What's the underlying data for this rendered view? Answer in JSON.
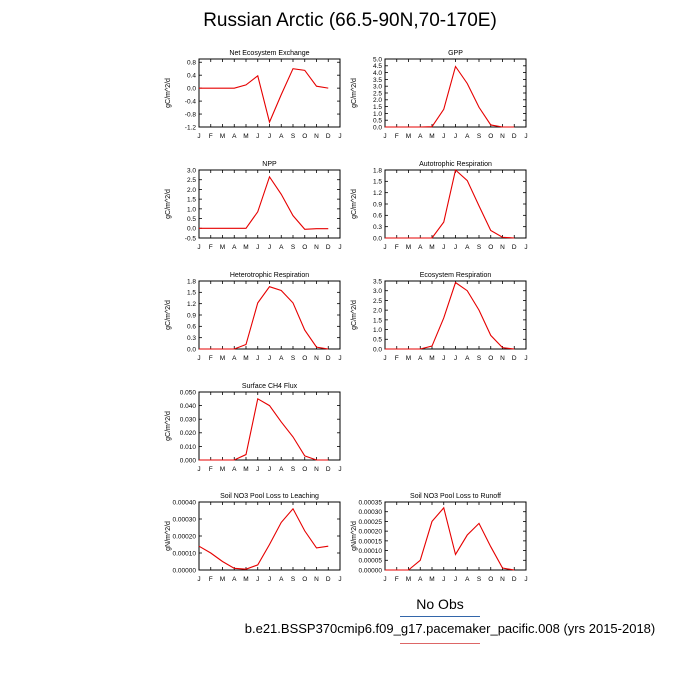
{
  "title": "Russian Arctic (66.5-90N,70-170E)",
  "legend_label": "No Obs",
  "case_label": "b.e21.BSSP370cmip6.f09_g17.pacemaker_pacific.008 (yrs 2015-2018)",
  "colors": {
    "line": "#e60000",
    "axis": "#000000",
    "legend_rule_obs": "#3366aa",
    "legend_rule_case": "#dd6666"
  },
  "months": [
    "J",
    "F",
    "M",
    "A",
    "M",
    "J",
    "J",
    "A",
    "S",
    "O",
    "N",
    "D",
    "J"
  ],
  "chart_data": [
    {
      "type": "line",
      "title": "Net Ecosystem Exchange",
      "ylabel": "gC/m^2/d",
      "ylim": [
        -1.2,
        0.9
      ],
      "yticks": [
        -1.2,
        -0.8,
        -0.4,
        0.0,
        0.4,
        0.8
      ],
      "ytick_labels": [
        "-1.2",
        "-0.8",
        "-0.4",
        "0.0",
        "0.4",
        "0.8"
      ],
      "x": [
        1,
        2,
        3,
        4,
        5,
        6,
        7,
        8,
        9,
        10,
        11,
        12
      ],
      "series": [
        {
          "values": [
            0.0,
            0.0,
            0.0,
            0.0,
            0.1,
            0.38,
            -1.05,
            -0.2,
            0.6,
            0.55,
            0.06,
            0.0
          ]
        }
      ]
    },
    {
      "type": "line",
      "title": "GPP",
      "ylabel": "gC/m^2/d",
      "ylim": [
        0,
        5
      ],
      "yticks": [
        0,
        0.5,
        1,
        1.5,
        2,
        2.5,
        3,
        3.5,
        4,
        4.5,
        5
      ],
      "ytick_labels": [
        "0.0",
        "0.5",
        "1.0",
        "1.5",
        "2.0",
        "2.5",
        "3.0",
        "3.5",
        "4.0",
        "4.5",
        "5.0"
      ],
      "x": [
        1,
        2,
        3,
        4,
        5,
        6,
        7,
        8,
        9,
        10,
        11,
        12
      ],
      "series": [
        {
          "values": [
            0.0,
            0.0,
            0.0,
            0.0,
            0.02,
            1.3,
            4.45,
            3.2,
            1.45,
            0.15,
            0.0,
            0.0
          ]
        }
      ]
    },
    {
      "type": "line",
      "title": "NPP",
      "ylabel": "gC/m^2/d",
      "ylim": [
        -0.5,
        3
      ],
      "yticks": [
        -0.5,
        0,
        0.5,
        1,
        1.5,
        2,
        2.5,
        3
      ],
      "ytick_labels": [
        "-0.5",
        "0.0",
        "0.5",
        "1.0",
        "1.5",
        "2.0",
        "2.5",
        "3.0"
      ],
      "x": [
        1,
        2,
        3,
        4,
        5,
        6,
        7,
        8,
        9,
        10,
        11,
        12
      ],
      "series": [
        {
          "values": [
            0.0,
            0.0,
            0.0,
            0.0,
            0.0,
            0.85,
            2.65,
            1.75,
            0.65,
            -0.05,
            -0.02,
            -0.02
          ]
        }
      ]
    },
    {
      "type": "line",
      "title": "Autotrophic Respiration",
      "ylabel": "gC/m^2/d",
      "ylim": [
        0,
        1.8
      ],
      "yticks": [
        0,
        0.3,
        0.6,
        0.9,
        1.2,
        1.5,
        1.8
      ],
      "ytick_labels": [
        "0.0",
        "0.3",
        "0.6",
        "0.9",
        "1.2",
        "1.5",
        "1.8"
      ],
      "x": [
        1,
        2,
        3,
        4,
        5,
        6,
        7,
        8,
        9,
        10,
        11,
        12
      ],
      "series": [
        {
          "values": [
            0.0,
            0.0,
            0.0,
            0.0,
            0.0,
            0.42,
            1.8,
            1.52,
            0.85,
            0.2,
            0.02,
            0.0
          ]
        }
      ]
    },
    {
      "type": "line",
      "title": "Heterotrophic Respiration",
      "ylabel": "gC/m^2/d",
      "ylim": [
        0,
        1.8
      ],
      "yticks": [
        0,
        0.3,
        0.6,
        0.9,
        1.2,
        1.5,
        1.8
      ],
      "ytick_labels": [
        "0.0",
        "0.3",
        "0.6",
        "0.9",
        "1.2",
        "1.5",
        "1.8"
      ],
      "x": [
        1,
        2,
        3,
        4,
        5,
        6,
        7,
        8,
        9,
        10,
        11,
        12
      ],
      "series": [
        {
          "values": [
            0.0,
            0.0,
            0.0,
            0.0,
            0.12,
            1.22,
            1.65,
            1.55,
            1.22,
            0.5,
            0.05,
            0.0
          ]
        }
      ]
    },
    {
      "type": "line",
      "title": "Ecosystem Respiration",
      "ylabel": "gC/m^2/d",
      "ylim": [
        0,
        3.5
      ],
      "yticks": [
        0,
        0.5,
        1,
        1.5,
        2,
        2.5,
        3,
        3.5
      ],
      "ytick_labels": [
        "0.0",
        "0.5",
        "1.0",
        "1.5",
        "2.0",
        "2.5",
        "3.0",
        "3.5"
      ],
      "x": [
        1,
        2,
        3,
        4,
        5,
        6,
        7,
        8,
        9,
        10,
        11,
        12
      ],
      "series": [
        {
          "values": [
            0.0,
            0.0,
            0.0,
            0.0,
            0.15,
            1.6,
            3.42,
            3.0,
            2.0,
            0.7,
            0.07,
            0.0
          ]
        }
      ]
    },
    {
      "type": "line",
      "title": "Surface CH4 Flux",
      "ylabel": "gC/m^2/d",
      "ylim": [
        0,
        0.05
      ],
      "yticks": [
        0,
        0.01,
        0.02,
        0.03,
        0.04,
        0.05
      ],
      "ytick_labels": [
        "0.000",
        "0.010",
        "0.020",
        "0.030",
        "0.040",
        "0.050"
      ],
      "x": [
        1,
        2,
        3,
        4,
        5,
        6,
        7,
        8,
        9,
        10,
        11,
        12
      ],
      "series": [
        {
          "values": [
            0.0,
            0.0,
            0.0,
            0.0,
            0.004,
            0.045,
            0.04,
            0.028,
            0.017,
            0.003,
            0.0,
            0.0
          ]
        }
      ]
    },
    {
      "type": "line",
      "title": "Soil NO3 Pool Loss to Leaching",
      "ylabel": "gN/m^2/d",
      "ylim": [
        0,
        0.0004
      ],
      "yticks": [
        0,
        0.0001,
        0.0002,
        0.0003,
        0.0004
      ],
      "ytick_labels": [
        "0.00000",
        "0.00010",
        "0.00020",
        "0.00030",
        "0.00040"
      ],
      "x": [
        1,
        2,
        3,
        4,
        5,
        6,
        7,
        8,
        9,
        10,
        11,
        12
      ],
      "series": [
        {
          "values": [
            0.00014,
            0.0001,
            5e-05,
            1e-05,
            5e-06,
            3e-05,
            0.00015,
            0.00028,
            0.00036,
            0.00023,
            0.00013,
            0.00014
          ]
        }
      ]
    },
    {
      "type": "line",
      "title": "Soil NO3 Pool Loss to Runoff",
      "ylabel": "gN/m^2/d",
      "ylim": [
        0,
        0.00035
      ],
      "yticks": [
        0,
        5e-05,
        0.0001,
        0.00015,
        0.0002,
        0.00025,
        0.0003,
        0.00035
      ],
      "ytick_labels": [
        "0.00000",
        "0.00005",
        "0.00010",
        "0.00015",
        "0.00020",
        "0.00025",
        "0.00030",
        "0.00035"
      ],
      "x": [
        1,
        2,
        3,
        4,
        5,
        6,
        7,
        8,
        9,
        10,
        11,
        12
      ],
      "series": [
        {
          "values": [
            0.0,
            0.0,
            0.0,
            5e-05,
            0.00025,
            0.00032,
            8e-05,
            0.00018,
            0.00024,
            0.00012,
            1e-05,
            0.0
          ]
        }
      ]
    }
  ]
}
